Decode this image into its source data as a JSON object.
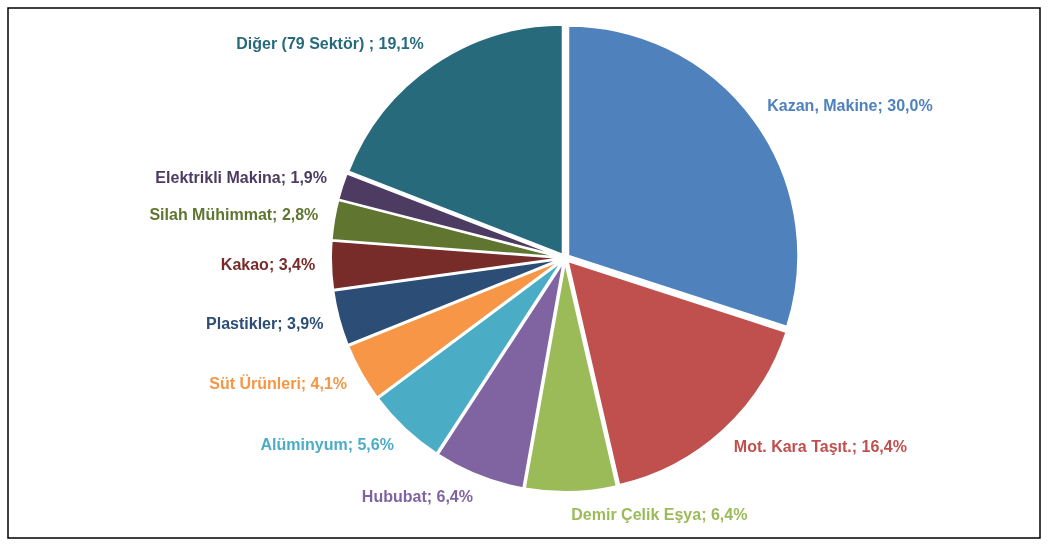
{
  "chart_data": {
    "type": "pie",
    "categories": [
      "Kazan, Makine",
      "Mot. Kara Taşıt.",
      "Demir Çelik Eşya",
      "Hububat",
      "Alüminyum",
      "Süt Ürünleri",
      "Plastikler",
      "Kakao",
      "Silah Mühimmat",
      "Elektrikli Makina",
      "Diğer (79 Sektör) "
    ],
    "values": [
      30.0,
      16.4,
      6.4,
      6.4,
      5.6,
      4.1,
      3.9,
      3.4,
      2.8,
      1.9,
      19.1
    ],
    "value_labels": [
      "30,0%",
      "16,4%",
      "6,4%",
      "6,4%",
      "5,6%",
      "4,1%",
      "3,9%",
      "3,4%",
      "2,8%",
      "1,9%",
      "19,1%"
    ],
    "colors": [
      "#4f81bd",
      "#c0504d",
      "#9bbb59",
      "#8064a2",
      "#4bacc6",
      "#f79646",
      "#2c4d75",
      "#772c2a",
      "#5f7530",
      "#4d3b62",
      "#276a7c"
    ],
    "legend": false
  }
}
